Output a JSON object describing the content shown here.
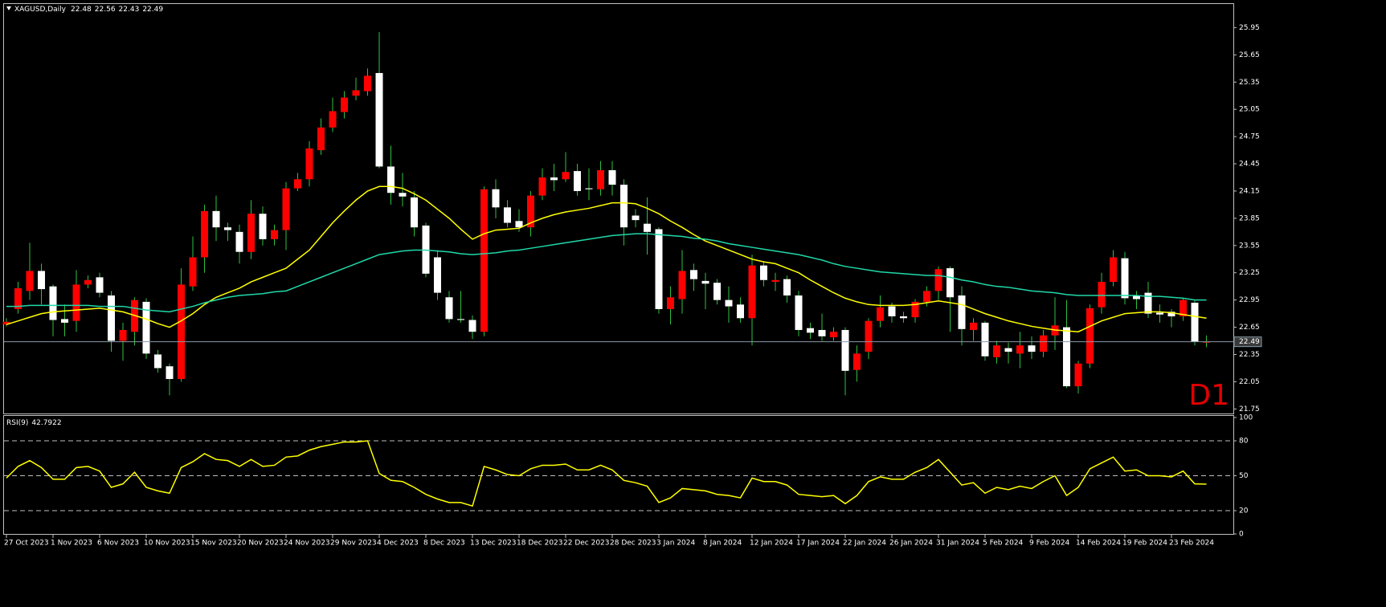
{
  "chart_data": [
    {
      "type": "candlestick",
      "title": "XAGUSD,Daily",
      "timeframe": "D1",
      "categories": [
        "27 Oct 2023",
        null,
        null,
        null,
        "1 Nov 2023",
        null,
        null,
        null,
        "6 Nov 2023",
        null,
        null,
        null,
        "10 Nov 2023",
        null,
        null,
        null,
        "15 Nov 2023",
        null,
        null,
        null,
        "20 Nov 2023",
        null,
        null,
        null,
        "24 Nov 2023",
        null,
        null,
        null,
        "29 Nov 2023",
        null,
        null,
        null,
        "4 Dec 2023",
        null,
        null,
        null,
        "8 Dec 2023",
        null,
        null,
        null,
        "13 Dec 2023",
        null,
        null,
        null,
        "18 Dec 2023",
        null,
        null,
        null,
        "22 Dec 2023",
        null,
        null,
        null,
        "28 Dec 2023",
        null,
        null,
        null,
        "3 Jan 2024",
        null,
        null,
        null,
        "8 Jan 2024",
        null,
        null,
        null,
        "12 Jan 2024",
        null,
        null,
        null,
        "17 Jan 2024",
        null,
        null,
        null,
        "22 Jan 2024",
        null,
        null,
        null,
        "26 Jan 2024",
        null,
        null,
        null,
        "31 Jan 2024",
        null,
        null,
        null,
        "5 Feb 2024",
        null,
        null,
        null,
        "9 Feb 2024",
        null,
        null,
        null,
        "14 Feb 2024",
        null,
        null,
        null,
        "19 Feb 2024",
        null,
        null,
        null,
        "23 Feb 2024",
        null,
        null,
        null
      ],
      "open": [
        22.68,
        22.85,
        23.05,
        23.27,
        23.1,
        22.74,
        22.72,
        23.12,
        23.2,
        23.0,
        22.5,
        22.6,
        22.93,
        22.35,
        22.22,
        22.08,
        23.1,
        23.42,
        23.93,
        23.75,
        23.7,
        23.48,
        23.9,
        23.62,
        23.72,
        24.18,
        24.28,
        24.6,
        24.85,
        25.02,
        25.2,
        25.25,
        25.45,
        24.42,
        24.13,
        24.08,
        23.77,
        23.42,
        22.98,
        22.74,
        22.73,
        22.6,
        24.17,
        23.97,
        23.82,
        23.75,
        24.1,
        24.3,
        24.28,
        24.37,
        24.18,
        24.17,
        24.38,
        24.22,
        23.88,
        23.79,
        23.73,
        22.85,
        22.96,
        23.28,
        23.16,
        23.14,
        22.95,
        22.9,
        22.75,
        23.33,
        23.15,
        23.18,
        23.0,
        22.64,
        22.62,
        22.54,
        22.62,
        22.18,
        22.38,
        22.72,
        22.88,
        22.77,
        22.76,
        22.93,
        23.05,
        23.3,
        23.0,
        22.62,
        22.7,
        22.32,
        22.42,
        22.36,
        22.45,
        22.38,
        22.56,
        22.65,
        22.0,
        22.25,
        22.87,
        23.15,
        23.41,
        23.0,
        23.03,
        22.81,
        22.82,
        22.77,
        22.92,
        22.48
      ],
      "high": [
        22.75,
        23.15,
        23.58,
        23.35,
        23.12,
        22.9,
        23.28,
        23.22,
        23.25,
        23.05,
        22.7,
        22.98,
        22.97,
        22.4,
        22.25,
        23.3,
        23.65,
        24.0,
        24.1,
        23.8,
        23.78,
        24.05,
        23.98,
        23.78,
        24.25,
        24.35,
        24.7,
        24.95,
        25.18,
        25.25,
        25.4,
        25.5,
        25.9,
        24.65,
        24.35,
        24.15,
        23.8,
        23.5,
        23.05,
        23.05,
        22.78,
        24.2,
        24.28,
        24.05,
        23.95,
        24.15,
        24.4,
        24.45,
        24.58,
        24.45,
        24.4,
        24.48,
        24.48,
        24.28,
        23.95,
        24.08,
        23.75,
        23.1,
        23.5,
        23.35,
        23.25,
        23.18,
        23.1,
        22.98,
        23.45,
        23.38,
        23.25,
        23.22,
        23.05,
        22.7,
        22.8,
        22.65,
        22.65,
        22.45,
        22.75,
        23.0,
        22.92,
        22.82,
        22.96,
        23.1,
        23.32,
        23.32,
        23.1,
        22.75,
        22.72,
        22.5,
        22.48,
        22.6,
        22.55,
        22.62,
        22.98,
        22.95,
        22.28,
        22.9,
        23.25,
        23.5,
        23.48,
        23.05,
        23.15,
        22.9,
        22.85,
        22.97,
        22.95,
        22.56
      ],
      "low": [
        22.66,
        22.8,
        22.95,
        22.9,
        22.55,
        22.55,
        22.6,
        23.08,
        22.98,
        22.38,
        22.28,
        22.45,
        22.3,
        22.15,
        21.9,
        22.05,
        23.05,
        23.25,
        23.6,
        23.6,
        23.35,
        23.4,
        23.55,
        23.55,
        23.5,
        24.15,
        24.2,
        24.55,
        24.8,
        24.95,
        25.15,
        25.2,
        24.4,
        24.0,
        23.98,
        23.65,
        23.2,
        22.95,
        22.7,
        22.7,
        22.52,
        22.55,
        23.85,
        23.75,
        23.7,
        23.65,
        24.05,
        24.15,
        24.25,
        24.1,
        24.05,
        24.1,
        24.1,
        23.55,
        23.75,
        23.45,
        22.8,
        22.68,
        22.8,
        23.05,
        22.85,
        22.9,
        22.7,
        22.7,
        22.45,
        23.1,
        23.05,
        22.92,
        22.55,
        22.52,
        22.5,
        22.5,
        21.9,
        22.05,
        22.3,
        22.65,
        22.7,
        22.7,
        22.7,
        22.88,
        22.95,
        22.6,
        22.45,
        22.5,
        22.28,
        22.25,
        22.25,
        22.2,
        22.3,
        22.32,
        22.4,
        21.98,
        21.92,
        22.2,
        22.8,
        23.1,
        22.9,
        22.85,
        22.75,
        22.7,
        22.65,
        22.72,
        22.45,
        22.43
      ],
      "close": [
        22.71,
        23.08,
        23.27,
        23.07,
        22.73,
        22.7,
        23.12,
        23.17,
        23.03,
        22.5,
        22.62,
        22.95,
        22.36,
        22.2,
        22.08,
        23.12,
        23.42,
        23.93,
        23.75,
        23.72,
        23.48,
        23.9,
        23.62,
        23.72,
        24.18,
        24.28,
        24.62,
        24.85,
        25.03,
        25.18,
        25.26,
        25.42,
        24.42,
        24.13,
        24.09,
        23.75,
        23.24,
        23.03,
        22.74,
        22.73,
        22.6,
        24.17,
        23.97,
        23.8,
        23.75,
        24.1,
        24.3,
        24.27,
        24.36,
        24.15,
        24.17,
        24.38,
        24.22,
        23.75,
        23.83,
        23.7,
        22.85,
        22.98,
        23.27,
        23.18,
        23.13,
        22.95,
        22.88,
        22.75,
        23.33,
        23.17,
        23.17,
        23.0,
        22.62,
        22.59,
        22.55,
        22.6,
        22.17,
        22.36,
        22.72,
        22.87,
        22.77,
        22.75,
        22.93,
        23.05,
        23.29,
        22.98,
        22.63,
        22.7,
        22.33,
        22.45,
        22.38,
        22.45,
        22.38,
        22.56,
        22.67,
        22.0,
        22.25,
        22.86,
        23.15,
        23.42,
        22.97,
        22.96,
        22.8,
        22.79,
        22.77,
        22.95,
        22.49,
        22.49
      ],
      "up_color": "#ff0000",
      "down_color": "#ffffff",
      "wick_color": "#2fbf3f",
      "series": [
        {
          "color": "#ffff00",
          "values": [
            22.68,
            22.72,
            22.76,
            22.8,
            22.82,
            22.83,
            22.84,
            22.85,
            22.86,
            22.84,
            22.82,
            22.78,
            22.74,
            22.69,
            22.65,
            22.72,
            22.8,
            22.9,
            22.98,
            23.03,
            23.08,
            23.15,
            23.2,
            23.25,
            23.3,
            23.4,
            23.5,
            23.65,
            23.8,
            23.93,
            24.05,
            24.15,
            24.2,
            24.2,
            24.18,
            24.12,
            24.05,
            23.95,
            23.85,
            23.73,
            23.62,
            23.68,
            23.72,
            23.73,
            23.74,
            23.8,
            23.85,
            23.89,
            23.92,
            23.94,
            23.96,
            23.99,
            24.02,
            24.02,
            24.01,
            23.96,
            23.9,
            23.82,
            23.75,
            23.67,
            23.6,
            23.55,
            23.5,
            23.45,
            23.4,
            23.37,
            23.35,
            23.3,
            23.25,
            23.17,
            23.1,
            23.03,
            22.97,
            22.93,
            22.9,
            22.89,
            22.89,
            22.89,
            22.9,
            22.92,
            22.94,
            22.92,
            22.9,
            22.85,
            22.8,
            22.76,
            22.72,
            22.69,
            22.66,
            22.64,
            22.62,
            22.61,
            22.6,
            22.66,
            22.72,
            22.76,
            22.8,
            22.81,
            22.82,
            22.82,
            22.81,
            22.79,
            22.77,
            22.75
          ]
        },
        {
          "color": "#20d8a8",
          "values": [
            22.88,
            22.88,
            22.89,
            22.89,
            22.89,
            22.89,
            22.89,
            22.89,
            22.88,
            22.88,
            22.88,
            22.86,
            22.84,
            22.83,
            22.82,
            22.85,
            22.88,
            22.92,
            22.95,
            22.98,
            23.0,
            23.01,
            23.02,
            23.04,
            23.05,
            23.1,
            23.15,
            23.2,
            23.25,
            23.3,
            23.35,
            23.4,
            23.45,
            23.47,
            23.49,
            23.5,
            23.5,
            23.49,
            23.48,
            23.46,
            23.45,
            23.46,
            23.47,
            23.49,
            23.5,
            23.52,
            23.54,
            23.56,
            23.58,
            23.6,
            23.62,
            23.64,
            23.66,
            23.67,
            23.68,
            23.68,
            23.67,
            23.66,
            23.65,
            23.63,
            23.62,
            23.6,
            23.57,
            23.55,
            23.53,
            23.51,
            23.49,
            23.47,
            23.45,
            23.42,
            23.39,
            23.35,
            23.32,
            23.3,
            23.28,
            23.26,
            23.25,
            23.24,
            23.23,
            23.22,
            23.22,
            23.2,
            23.17,
            23.15,
            23.12,
            23.1,
            23.09,
            23.07,
            23.05,
            23.04,
            23.03,
            23.01,
            23.0,
            23.0,
            23.0,
            23.0,
            23.0,
            23.0,
            22.99,
            22.99,
            22.98,
            22.97,
            22.95,
            22.95
          ]
        }
      ],
      "ylim": [
        21.7,
        26.21
      ],
      "yticks": [
        25.95,
        25.65,
        25.35,
        25.05,
        24.75,
        24.45,
        24.15,
        23.85,
        23.55,
        23.25,
        22.95,
        22.65,
        22.35,
        22.05,
        21.75
      ]
    },
    {
      "type": "line",
      "title": "RSI(9)",
      "color": "#ffff00",
      "values": [
        48,
        58,
        63,
        57,
        47,
        47,
        57,
        58,
        54,
        40,
        43,
        53,
        40,
        37,
        35,
        57,
        62,
        69,
        64,
        63,
        58,
        64,
        58,
        59,
        66,
        67,
        72,
        75,
        77,
        79,
        79,
        80,
        52,
        46,
        45,
        40,
        34,
        30,
        27,
        27,
        24,
        58,
        55,
        51,
        50,
        56,
        59,
        59,
        60,
        55,
        55,
        59,
        55,
        46,
        44,
        41,
        27,
        31,
        39,
        38,
        37,
        34,
        33,
        31,
        48,
        45,
        45,
        42,
        34,
        33,
        32,
        33,
        26,
        33,
        45,
        49,
        47,
        47,
        53,
        57,
        64,
        53,
        42,
        44,
        35,
        40,
        38,
        41,
        39,
        45,
        50,
        33,
        40,
        56,
        61,
        66,
        54,
        55,
        50,
        50,
        49,
        54,
        43,
        42.7922
      ],
      "ylim": [
        0,
        100
      ],
      "yticks": [
        100,
        80,
        50,
        20,
        0
      ]
    }
  ]
}
